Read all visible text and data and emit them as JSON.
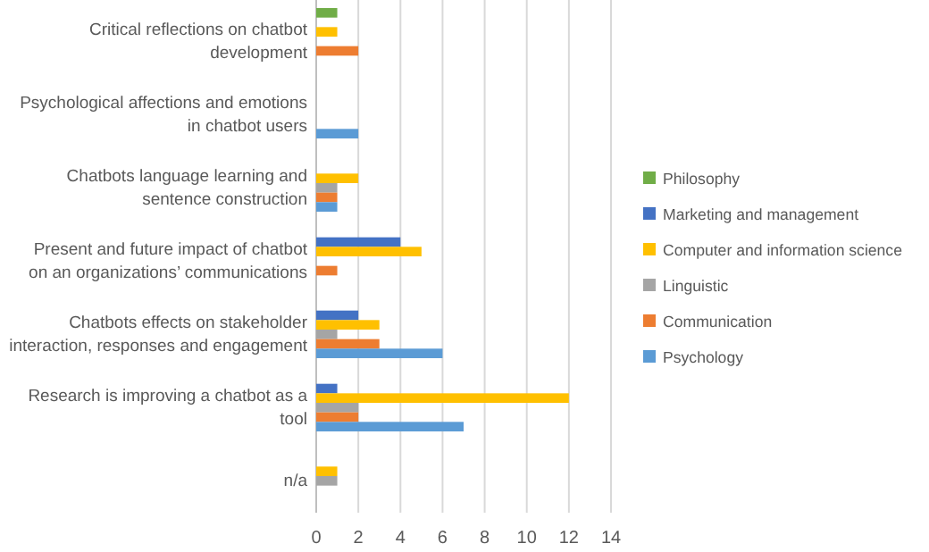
{
  "chart_data": {
    "type": "bar",
    "orientation": "horizontal",
    "categories": [
      "Critical reflections on chatbot development",
      "Psychological affections and emotions in chatbot users",
      "Chatbots language learning and sentence construction",
      "Present and future impact of chatbot on an organizations’ communications",
      "Chatbots effects on stakeholder interaction, responses and engagement",
      "Research is improving a chatbot as a tool",
      "n/a"
    ],
    "series": [
      {
        "name": "Philosophy",
        "color": "#70ad47",
        "values": [
          1,
          0,
          0,
          0,
          0,
          0,
          0
        ]
      },
      {
        "name": "Marketing and management",
        "color": "#4472c4",
        "values": [
          0,
          0,
          0,
          4,
          2,
          1,
          0
        ]
      },
      {
        "name": "Computer and information science",
        "color": "#ffc000",
        "values": [
          1,
          0,
          2,
          5,
          3,
          12,
          1
        ]
      },
      {
        "name": "Linguistic",
        "color": "#a5a5a5",
        "values": [
          0,
          0,
          1,
          0,
          1,
          2,
          1
        ]
      },
      {
        "name": "Communication",
        "color": "#ed7d31",
        "values": [
          2,
          0,
          1,
          1,
          3,
          2,
          0
        ]
      },
      {
        "name": "Psychology",
        "color": "#5b9bd5",
        "values": [
          0,
          2,
          1,
          0,
          6,
          7,
          0
        ]
      }
    ],
    "xlim": [
      0,
      14
    ],
    "xticks": [
      0,
      2,
      4,
      6,
      8,
      10,
      12,
      14
    ],
    "grid": "x",
    "legend": "right"
  }
}
